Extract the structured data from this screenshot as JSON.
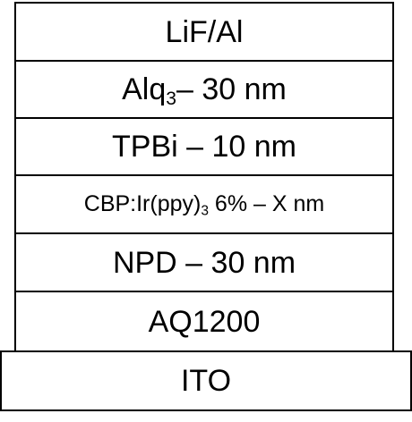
{
  "layers": [
    {
      "id": "lif-al",
      "parts": [
        "LiF/Al"
      ]
    },
    {
      "id": "alq3",
      "parts": [
        "Alq",
        "3",
        "– 30 nm"
      ]
    },
    {
      "id": "tpbi",
      "parts": [
        "TPBi – 10 nm"
      ]
    },
    {
      "id": "cbp",
      "parts": [
        "CBP:Ir(ppy)",
        "3",
        " 6% – X nm"
      ]
    },
    {
      "id": "npd",
      "parts": [
        "NPD – 30 nm"
      ]
    },
    {
      "id": "aq1200",
      "parts": [
        "AQ1200"
      ]
    },
    {
      "id": "ito",
      "parts": [
        "ITO"
      ]
    }
  ]
}
